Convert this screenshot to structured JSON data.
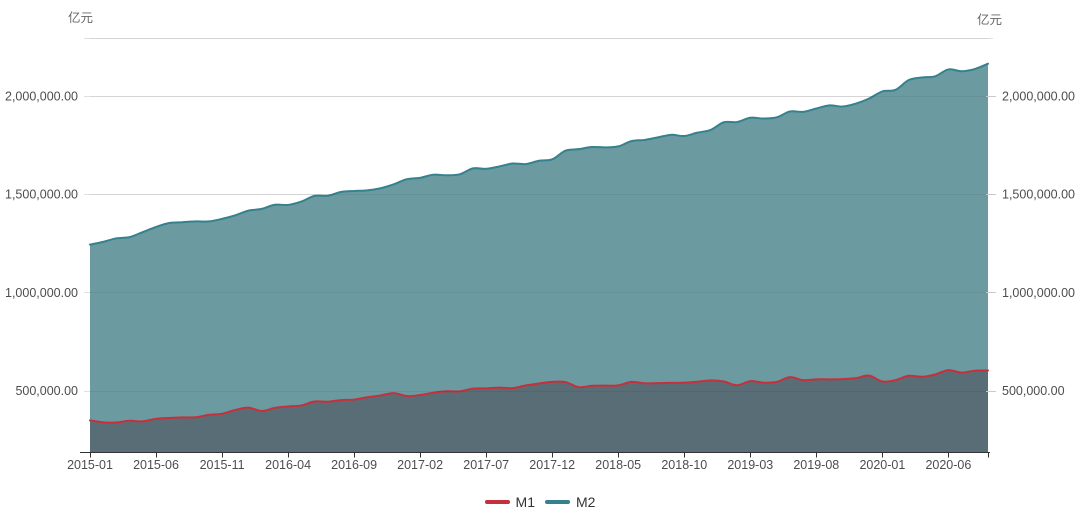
{
  "chart_data": {
    "type": "area",
    "title": "",
    "unit_left": "亿元",
    "unit_right": "亿元",
    "legend_position": "bottom",
    "grid": true,
    "x_tick_every": 5,
    "x": [
      "2015-01",
      "2015-02",
      "2015-03",
      "2015-04",
      "2015-05",
      "2015-06",
      "2015-07",
      "2015-08",
      "2015-09",
      "2015-10",
      "2015-11",
      "2015-12",
      "2016-01",
      "2016-02",
      "2016-03",
      "2016-04",
      "2016-05",
      "2016-06",
      "2016-07",
      "2016-08",
      "2016-09",
      "2016-10",
      "2016-11",
      "2016-12",
      "2017-01",
      "2017-02",
      "2017-03",
      "2017-04",
      "2017-05",
      "2017-06",
      "2017-07",
      "2017-08",
      "2017-09",
      "2017-10",
      "2017-11",
      "2017-12",
      "2018-01",
      "2018-02",
      "2018-03",
      "2018-04",
      "2018-05",
      "2018-06",
      "2018-07",
      "2018-08",
      "2018-09",
      "2018-10",
      "2018-11",
      "2018-12",
      "2019-01",
      "2019-02",
      "2019-03",
      "2019-04",
      "2019-05",
      "2019-06",
      "2019-07",
      "2019-08",
      "2019-09",
      "2019-10",
      "2019-11",
      "2019-12",
      "2020-01",
      "2020-02",
      "2020-03",
      "2020-04",
      "2020-05",
      "2020-06",
      "2020-07",
      "2020-08",
      "2020-09"
    ],
    "y_axis": {
      "min": 187000,
      "max": 2295000,
      "ticks": [
        500000,
        1000000,
        1500000,
        2000000
      ],
      "tick_labels": [
        "500,000.00",
        "1,000,000.00",
        "1,500,000.00",
        "2,000,000.00"
      ]
    },
    "series": [
      {
        "name": "M1",
        "line_color": "#c5303c",
        "fill_color": "#586d75",
        "line_width": 2,
        "values": [
          348000,
          338000,
          337000,
          346000,
          343000,
          356000,
          360000,
          363000,
          364000,
          376000,
          382000,
          401000,
          413000,
          396000,
          412000,
          419000,
          424000,
          444000,
          443000,
          451000,
          454000,
          466000,
          475000,
          487000,
          472000,
          477000,
          489000,
          496000,
          496000,
          510000,
          511000,
          515000,
          512000,
          526000,
          536000,
          544000,
          543000,
          517000,
          524000,
          525000,
          526000,
          544000,
          537000,
          538000,
          539000,
          540000,
          545000,
          552000,
          546000,
          527000,
          548000,
          540000,
          544000,
          568000,
          553000,
          557000,
          557000,
          558000,
          563000,
          576000,
          546000,
          553000,
          575000,
          570000,
          582000,
          604000,
          591000,
          601000,
          602000
        ]
      },
      {
        "name": "M2",
        "line_color": "#35818e",
        "fill_color": "#6b9aa0",
        "line_width": 2,
        "values": [
          1243000,
          1257000,
          1275000,
          1281000,
          1307000,
          1333000,
          1353000,
          1357000,
          1361000,
          1361000,
          1374000,
          1392000,
          1416000,
          1425000,
          1446000,
          1445000,
          1462000,
          1491000,
          1492000,
          1511000,
          1516000,
          1519000,
          1530000,
          1550000,
          1576000,
          1583000,
          1599000,
          1596000,
          1601000,
          1631000,
          1629000,
          1641000,
          1656000,
          1653000,
          1670000,
          1677000,
          1721000,
          1729000,
          1740000,
          1738000,
          1743000,
          1770000,
          1776000,
          1789000,
          1802000,
          1796000,
          1813000,
          1827000,
          1866000,
          1867000,
          1889000,
          1885000,
          1891000,
          1921000,
          1919000,
          1936000,
          1952000,
          1946000,
          1961000,
          1987000,
          2023000,
          2031000,
          2081000,
          2094000,
          2100000,
          2135000,
          2126000,
          2137000,
          2164000
        ]
      }
    ],
    "style": {
      "grid_color": "#e0e0e0",
      "grid_overlay_color": "rgba(0,0,0,0.05)",
      "axis_line_color": "#333333",
      "right_tick_color": "#c9c9c9",
      "label_color": "#4d4d4d",
      "unit_color": "#666666",
      "legend_text_color": "#333333"
    }
  }
}
